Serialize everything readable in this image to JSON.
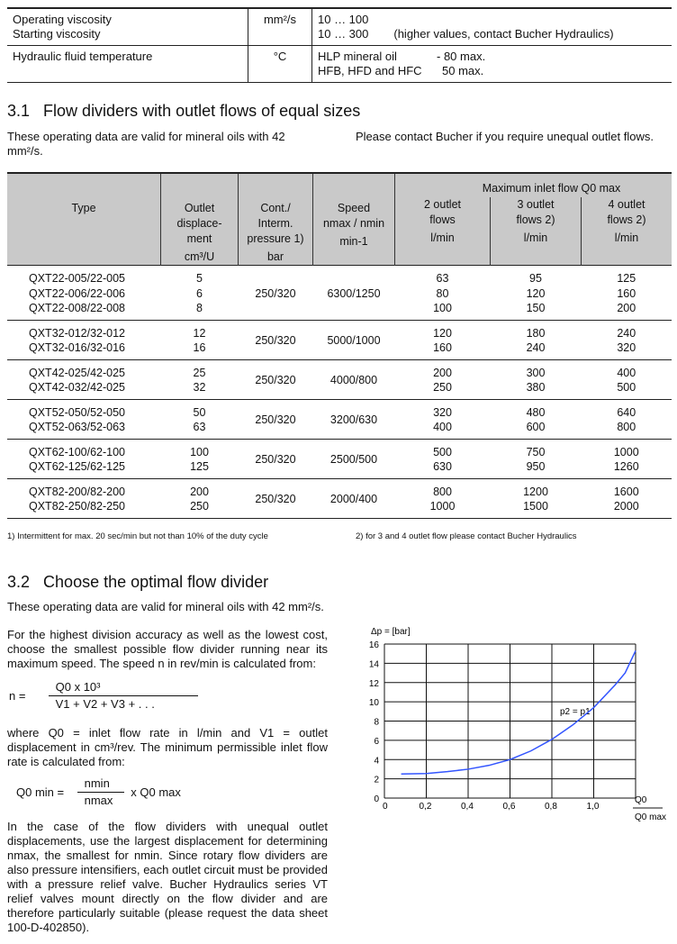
{
  "spec_table": {
    "rows": [
      {
        "labels": [
          "Operating viscosity",
          "Starting viscosity"
        ],
        "unit": "mm²/s",
        "values": [
          "10 … 100",
          "10 … 300"
        ],
        "note": "(higher values, contact Bucher Hydraulics)"
      },
      {
        "labels": [
          "Hydraulic fluid temperature"
        ],
        "unit": "°C",
        "values": [
          "HLP mineral oil",
          "HFB, HFD and HFC"
        ],
        "limits": [
          "- 80 max.",
          "50 max."
        ]
      }
    ]
  },
  "section31": {
    "number": "3.1",
    "title": "Flow dividers with outlet flows of equal sizes",
    "intro_left": "These operating data are valid for mineral oils with 42 mm²/s.",
    "intro_right": "Please contact Bucher if you require unequal outlet flows.",
    "table": {
      "group_header": "Maximum inlet flow Q0 max",
      "headers": [
        {
          "lines": [
            "Type"
          ]
        },
        {
          "lines": [
            "Outlet",
            "displace-",
            "ment",
            "cm³/U"
          ]
        },
        {
          "lines": [
            "Cont./",
            "Interm.",
            "pressure 1)",
            "bar"
          ]
        },
        {
          "lines": [
            "Speed",
            "nmax / nmin",
            "min-1"
          ]
        },
        {
          "lines": [
            "2 outlet",
            "flows",
            "l/min"
          ]
        },
        {
          "lines": [
            "3 outlet",
            "flows 2)",
            "l/min"
          ]
        },
        {
          "lines": [
            "4 outlet",
            "flows 2)",
            "l/min"
          ]
        }
      ],
      "groups": [
        {
          "types": [
            "QXT22-005/22-005",
            "QXT22-006/22-006",
            "QXT22-008/22-008"
          ],
          "disp": [
            "5",
            "6",
            "8"
          ],
          "pressure": "250/320",
          "speed": "6300/1250",
          "f2": [
            "63",
            "80",
            "100"
          ],
          "f3": [
            "95",
            "120",
            "150"
          ],
          "f4": [
            "125",
            "160",
            "200"
          ]
        },
        {
          "types": [
            "QXT32-012/32-012",
            "QXT32-016/32-016"
          ],
          "disp": [
            "12",
            "16"
          ],
          "pressure": "250/320",
          "speed": "5000/1000",
          "f2": [
            "120",
            "160"
          ],
          "f3": [
            "180",
            "240"
          ],
          "f4": [
            "240",
            "320"
          ]
        },
        {
          "types": [
            "QXT42-025/42-025",
            "QXT42-032/42-025"
          ],
          "disp": [
            "25",
            "32"
          ],
          "pressure": "250/320",
          "speed": "4000/800",
          "f2": [
            "200",
            "250"
          ],
          "f3": [
            "300",
            "380"
          ],
          "f4": [
            "400",
            "500"
          ]
        },
        {
          "types": [
            "QXT52-050/52-050",
            "QXT52-063/52-063"
          ],
          "disp": [
            "50",
            "63"
          ],
          "pressure": "250/320",
          "speed": "3200/630",
          "f2": [
            "320",
            "400"
          ],
          "f3": [
            "480",
            "600"
          ],
          "f4": [
            "640",
            "800"
          ]
        },
        {
          "types": [
            "QXT62-100/62-100",
            "QXT62-125/62-125"
          ],
          "disp": [
            "100",
            "125"
          ],
          "pressure": "250/320",
          "speed": "2500/500",
          "f2": [
            "500",
            "630"
          ],
          "f3": [
            "750",
            "950"
          ],
          "f4": [
            "1000",
            "1260"
          ]
        },
        {
          "types": [
            "QXT82-200/82-200",
            "QXT82-250/82-250"
          ],
          "disp": [
            "200",
            "250"
          ],
          "pressure": "250/320",
          "speed": "2000/400",
          "f2": [
            "800",
            "1000"
          ],
          "f3": [
            "1200",
            "1500"
          ],
          "f4": [
            "1600",
            "2000"
          ]
        }
      ]
    },
    "footnote1": "1) Intermittent for max. 20 sec/min but not than 10% of the duty cycle",
    "footnote2": "2) for 3 and 4 outlet flow please contact Bucher Hydraulics"
  },
  "section32": {
    "number": "3.2",
    "title": "Choose the optimal flow divider",
    "intro": "These operating data are valid for mineral oils with 42 mm²/s.",
    "para1": "For the highest division accuracy as well as the lowest cost, choose the smallest possible flow divider running near its maximum speed. The speed n in rev/min is calculated from:",
    "formula1": {
      "lhs": "n =",
      "num": "Q0 x 10³",
      "den": "V1 + V2 + V3 + . . ."
    },
    "para2": "where Q0 = inlet flow rate in l/min and V1 = outlet displacement in cm³/rev. The minimum permissible inlet flow rate is calculated from:",
    "formula2": {
      "lhs": "Q0 min =",
      "num": "nmin",
      "den": "nmax",
      "rhs": "x Q0 max"
    },
    "para3": "In the case of the flow dividers with unequal outlet displacements, use the largest displacement for determining nmax, the smallest for nmin. Since rotary flow dividers are also pressure intensifiers, each outlet circuit must be provided with a pressure relief valve. Bucher Hydraulics series VT relief valves mount directly on the flow divider and are therefore particularly suitable (please request the data sheet 100-D-402850)."
  },
  "chart_data": {
    "type": "line",
    "ylabel": "Δp = [bar]",
    "xlabel_num": "Q0",
    "xlabel_den": "Q0 max",
    "xlim": [
      0,
      1.2
    ],
    "ylim": [
      0,
      16
    ],
    "xticks": [
      "0",
      "0,2",
      "0,4",
      "0,6",
      "0,8",
      "1,0"
    ],
    "yticks": [
      "0",
      "2",
      "4",
      "6",
      "8",
      "10",
      "12",
      "14",
      "16"
    ],
    "grid": true,
    "series": [
      {
        "name": "p2 = p1",
        "color": "#3355ff",
        "x": [
          0.08,
          0.2,
          0.3,
          0.4,
          0.5,
          0.6,
          0.7,
          0.8,
          0.9,
          1.0,
          1.1,
          1.15,
          1.2
        ],
        "y": [
          2.5,
          2.55,
          2.75,
          3.0,
          3.4,
          4.0,
          4.9,
          6.1,
          7.6,
          9.4,
          11.7,
          13.0,
          15.3
        ]
      }
    ]
  }
}
